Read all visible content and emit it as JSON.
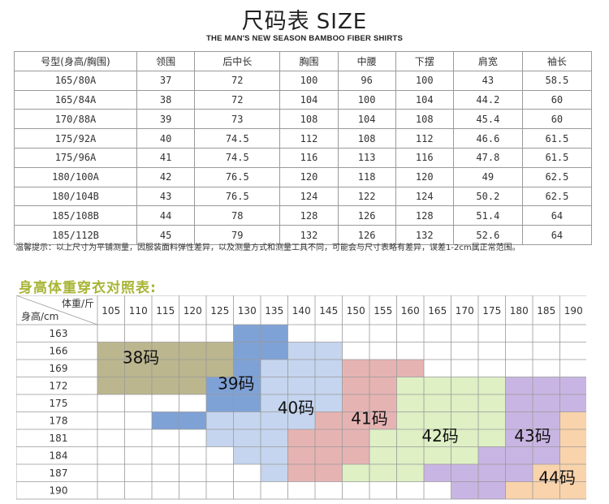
{
  "header": {
    "title": "尺码表",
    "title_en": "SIZE",
    "subtitle": "THE MAN'S NEW SEASON BAMBOO FIBER SHIRTS"
  },
  "size_table": {
    "columns": [
      "号型(身高/胸围)",
      "领围",
      "后中长",
      "胸围",
      "中腰",
      "下摆",
      "肩宽",
      "袖长"
    ],
    "rows": [
      [
        "165/80A",
        "37",
        "72",
        "100",
        "96",
        "100",
        "43",
        "58.5"
      ],
      [
        "165/84A",
        "38",
        "72",
        "104",
        "100",
        "104",
        "44.2",
        "60"
      ],
      [
        "170/88A",
        "39",
        "73",
        "108",
        "104",
        "108",
        "45.4",
        "60"
      ],
      [
        "175/92A",
        "40",
        "74.5",
        "112",
        "108",
        "112",
        "46.6",
        "61.5"
      ],
      [
        "175/96A",
        "41",
        "74.5",
        "116",
        "113",
        "116",
        "47.8",
        "61.5"
      ],
      [
        "180/100A",
        "42",
        "76.5",
        "120",
        "118",
        "120",
        "49",
        "62.5"
      ],
      [
        "180/104B",
        "43",
        "76.5",
        "124",
        "122",
        "124",
        "50.2",
        "62.5"
      ],
      [
        "185/108B",
        "44",
        "78",
        "128",
        "126",
        "128",
        "51.4",
        "64"
      ],
      [
        "185/112B",
        "45",
        "79",
        "132",
        "126",
        "132",
        "52.6",
        "64"
      ]
    ]
  },
  "note": "温馨提示：以上尺寸为平铺测量，因服装面料弹性差异，以及测量方式和测量工具不同，可能会与尺寸表略有差异，误差1-2cm属正常范围。",
  "fit_chart": {
    "title": "身高体重穿衣对照表:",
    "corner_weight": "体重/斤",
    "corner_height": "身高/cm",
    "weights": [
      "105",
      "110",
      "115",
      "120",
      "125",
      "130",
      "135",
      "140",
      "145",
      "150",
      "155",
      "160",
      "165",
      "170",
      "175",
      "180",
      "185",
      "190"
    ],
    "heights": [
      "163",
      "166",
      "169",
      "172",
      "175",
      "178",
      "181",
      "184",
      "187",
      "190"
    ],
    "zones": [
      {
        "label": "38码",
        "color": "#bcb68e"
      },
      {
        "label": "39码",
        "color": "#7fa2d6"
      },
      {
        "label": "40码",
        "color": "#c5d5ef"
      },
      {
        "label": "41码",
        "color": "#e6b3b3"
      },
      {
        "label": "42码",
        "color": "#def0c4"
      },
      {
        "label": "43码",
        "color": "#c9b5e3"
      },
      {
        "label": "44码",
        "color": "#f9d3ab"
      }
    ]
  }
}
